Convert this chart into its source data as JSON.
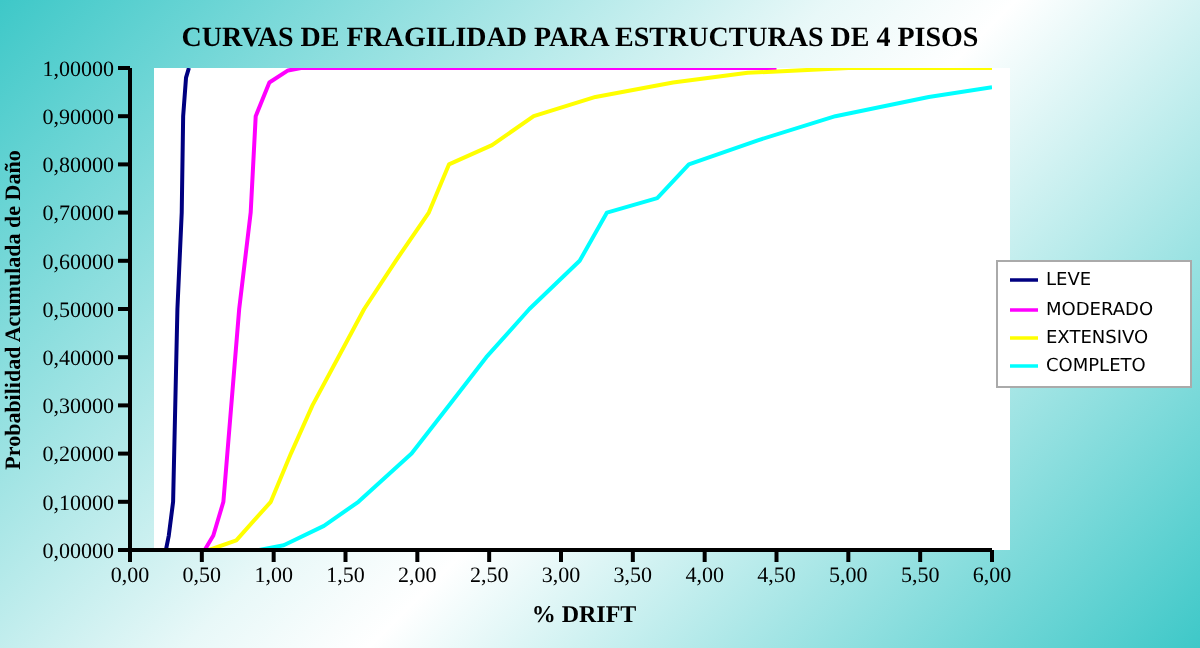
{
  "chart_data": {
    "type": "line",
    "title": "CURVAS DE FRAGILIDAD PARA ESTRUCTURAS DE 4 PISOS",
    "xlabel": "% DRIFT",
    "ylabel": "Probabilidad Acumulada de Daño",
    "xlim": [
      0,
      6
    ],
    "ylim": [
      0,
      1
    ],
    "xticks": [
      {
        "value": 0,
        "label": "0,00"
      },
      {
        "value": 0.5,
        "label": "0,50"
      },
      {
        "value": 1,
        "label": "1,00"
      },
      {
        "value": 1.5,
        "label": "1,50"
      },
      {
        "value": 2,
        "label": "2,00"
      },
      {
        "value": 2.5,
        "label": "2,50"
      },
      {
        "value": 3,
        "label": "3,00"
      },
      {
        "value": 3.5,
        "label": "3,50"
      },
      {
        "value": 4,
        "label": "4,00"
      },
      {
        "value": 4.5,
        "label": "4,50"
      },
      {
        "value": 5,
        "label": "5,00"
      },
      {
        "value": 5.5,
        "label": "5,50"
      },
      {
        "value": 6,
        "label": "6,00"
      }
    ],
    "yticks": [
      {
        "value": 0,
        "label": "0,00000"
      },
      {
        "value": 0.1,
        "label": "0,10000"
      },
      {
        "value": 0.2,
        "label": "0,20000"
      },
      {
        "value": 0.3,
        "label": "0,30000"
      },
      {
        "value": 0.4,
        "label": "0,40000"
      },
      {
        "value": 0.5,
        "label": "0,50000"
      },
      {
        "value": 0.6,
        "label": "0,60000"
      },
      {
        "value": 0.7,
        "label": "0,70000"
      },
      {
        "value": 0.8,
        "label": "0,80000"
      },
      {
        "value": 0.9,
        "label": "0,90000"
      },
      {
        "value": 1,
        "label": "1,00000"
      }
    ],
    "grid": false,
    "legend": "right",
    "marker": "none",
    "line_style": "solid",
    "series": [
      {
        "name": "LEVE",
        "color": "#000080",
        "x": [
          0.25,
          0.27,
          0.3,
          0.33,
          0.36,
          0.37,
          0.39,
          0.41
        ],
        "values": [
          0,
          0.03,
          0.1,
          0.5,
          0.7,
          0.9,
          0.98,
          1
        ]
      },
      {
        "name": "MODERADO",
        "color": "#ff00ff",
        "x": [
          0.52,
          0.58,
          0.65,
          0.76,
          0.84,
          0.875,
          0.97,
          1.1,
          1.19,
          4.5
        ],
        "values": [
          0,
          0.03,
          0.1,
          0.5,
          0.7,
          0.9,
          0.97,
          0.995,
          1,
          1
        ]
      },
      {
        "name": "EXTENSIVO",
        "color": "#ffff00",
        "x": [
          0.55,
          0.74,
          0.98,
          1.12,
          1.27,
          1.45,
          1.63,
          1.85,
          2.08,
          2.22,
          2.52,
          2.81,
          3.24,
          3.78,
          4.3,
          5,
          6
        ],
        "values": [
          0,
          0.02,
          0.1,
          0.2,
          0.3,
          0.4,
          0.5,
          0.6,
          0.7,
          0.8,
          0.84,
          0.9,
          0.94,
          0.97,
          0.99,
          1,
          1
        ]
      },
      {
        "name": "COMPLETO",
        "color": "#00ffff",
        "x": [
          0.9,
          1.07,
          1.35,
          1.59,
          1.96,
          2.22,
          2.48,
          2.78,
          3.13,
          3.32,
          3.67,
          3.89,
          4.37,
          4.91,
          5.56,
          6
        ],
        "values": [
          0,
          0.01,
          0.05,
          0.1,
          0.2,
          0.3,
          0.4,
          0.5,
          0.6,
          0.7,
          0.73,
          0.8,
          0.85,
          0.9,
          0.94,
          0.96
        ]
      }
    ]
  }
}
